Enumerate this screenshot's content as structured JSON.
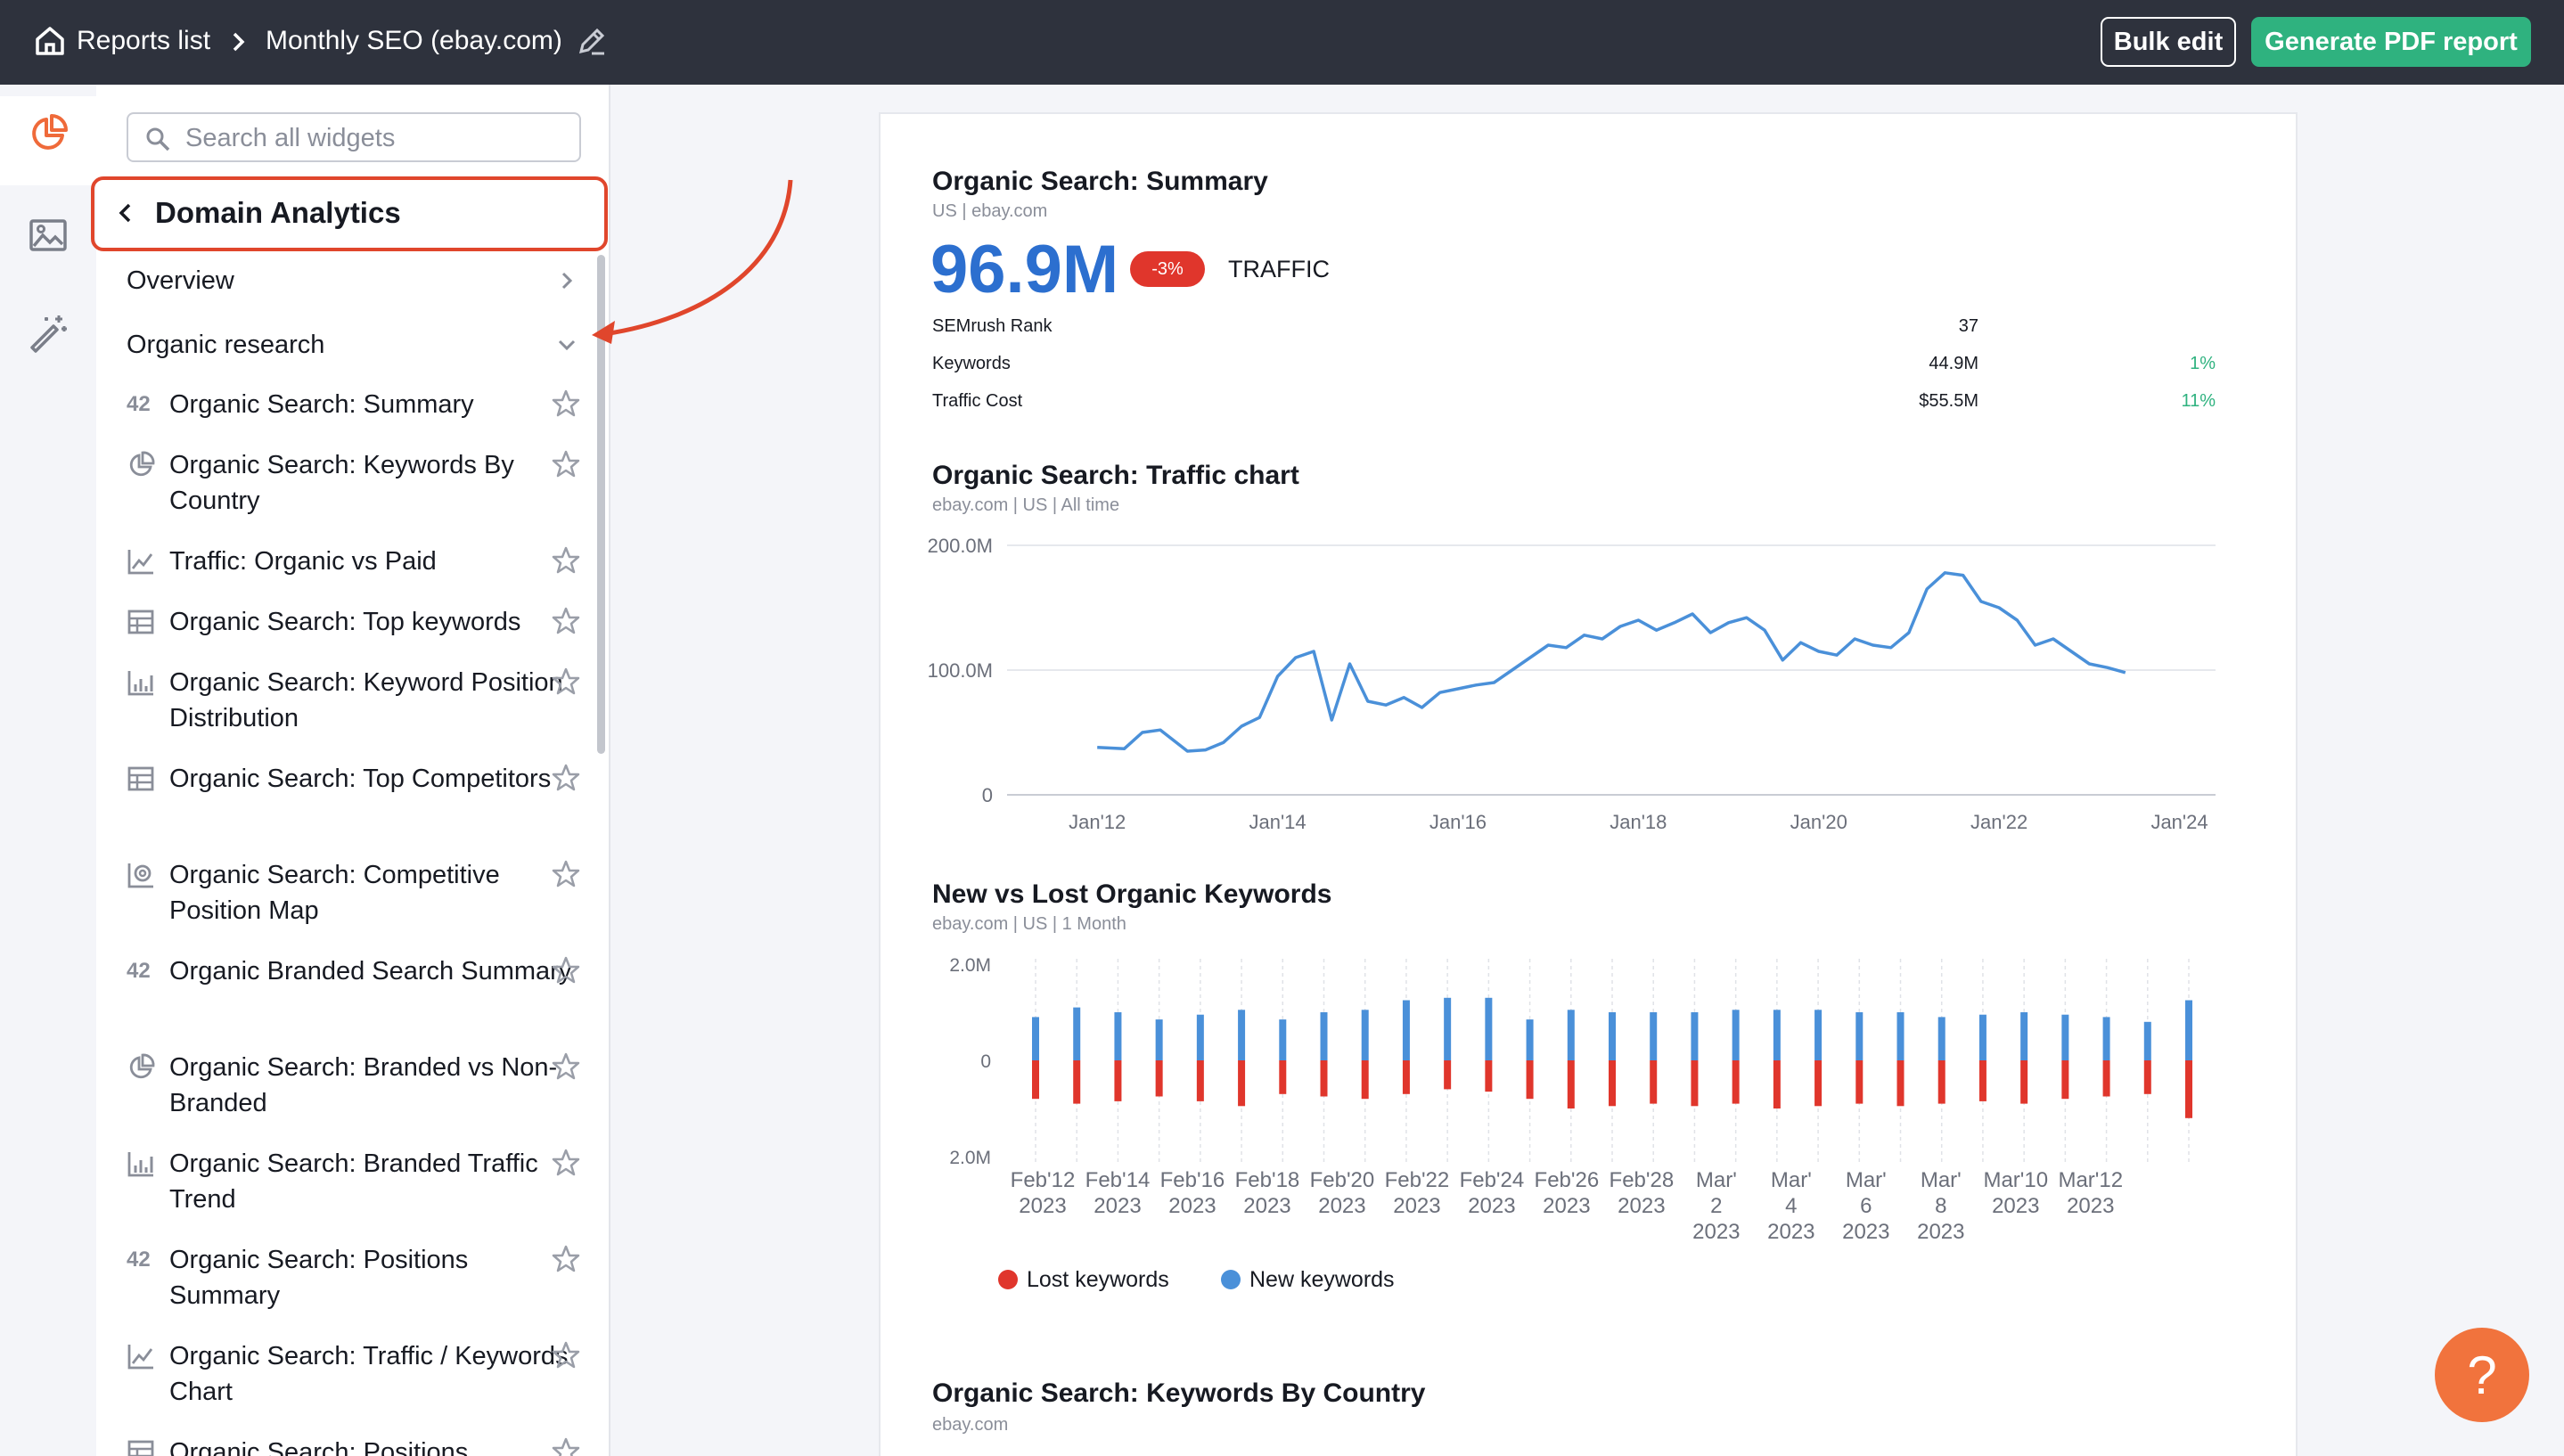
{
  "topbar": {
    "crumb_reports": "Reports list",
    "crumb_report": "Monthly SEO (ebay.com)",
    "bulk_edit": "Bulk edit",
    "generate_pdf": "Generate PDF report"
  },
  "sidebar": {
    "search_placeholder": "Search all widgets",
    "section_title": "Domain Analytics",
    "nav": [
      {
        "label": "Overview"
      },
      {
        "label": "Organic research"
      }
    ],
    "widgets": [
      {
        "label": "Organic Search: Summary",
        "icon": "number-42-icon",
        "glyph": "42"
      },
      {
        "label": "Organic Search: Keywords By Country",
        "icon": "pie-chart-icon"
      },
      {
        "label": "Traffic: Organic vs Paid",
        "icon": "line-chart-icon"
      },
      {
        "label": "Organic Search: Top keywords",
        "icon": "table-icon"
      },
      {
        "label": "Organic Search: Keyword Position Distribution",
        "icon": "bar-chart-icon"
      },
      {
        "label": "Organic Search: Top Competitors",
        "icon": "table-icon"
      },
      {
        "label": "Organic Search: Competitive Position Map",
        "icon": "position-map-icon"
      },
      {
        "label": "Organic Branded Search Summary",
        "icon": "number-42-icon",
        "glyph": "42"
      },
      {
        "label": "Organic Search: Branded vs Non-Branded",
        "icon": "pie-chart-icon"
      },
      {
        "label": "Organic Search: Branded Traffic Trend",
        "icon": "bar-chart-icon"
      },
      {
        "label": "Organic Search: Positions Summary",
        "icon": "number-42-icon",
        "glyph": "42"
      },
      {
        "label": "Organic Search: Traffic / Keywords Chart",
        "icon": "line-chart-icon"
      },
      {
        "label": "Organic Search: Positions",
        "icon": "table-icon"
      }
    ]
  },
  "summary": {
    "title": "Organic Search: Summary",
    "subtitle": "US | ebay.com",
    "traffic_value": "96.9M",
    "traffic_change": "-3%",
    "traffic_label": "TRAFFIC",
    "rows": [
      {
        "label": "SEMrush Rank",
        "value": "37",
        "change": ""
      },
      {
        "label": "Keywords",
        "value": "44.9M",
        "change": "1%"
      },
      {
        "label": "Traffic Cost",
        "value": "$55.5M",
        "change": "11%"
      }
    ]
  },
  "traffic_chart": {
    "title": "Organic Search: Traffic chart",
    "subtitle": "ebay.com | US | All time"
  },
  "new_lost": {
    "title": "New vs Lost Organic Keywords",
    "subtitle": "ebay.com | US | 1 Month",
    "legend_lost": "Lost keywords",
    "legend_new": "New keywords"
  },
  "keywords_country": {
    "title": "Organic Search: Keywords By Country",
    "subtitle": "ebay.com"
  },
  "help": {
    "label": "?"
  },
  "colors": {
    "accent_green": "#2fb27f",
    "line_blue": "#4a90d9",
    "lost_red": "#e0362c",
    "badge_red": "#e0362c"
  },
  "chart_data": [
    {
      "type": "line",
      "ylim": [
        0,
        200
      ],
      "ytick_labels": [
        "200.0M",
        "100.0M",
        "0"
      ],
      "xtick_labels": [
        "Jan'12",
        "Jan'14",
        "Jan'16",
        "Jan'18",
        "Jan'20",
        "Jan'22",
        "Jan'24"
      ],
      "x": [
        2012.0,
        2012.3,
        2012.5,
        2012.7,
        2013.0,
        2013.2,
        2013.4,
        2013.6,
        2013.8,
        2014.0,
        2014.2,
        2014.4,
        2014.6,
        2014.8,
        2015.0,
        2015.2,
        2015.4,
        2015.6,
        2015.8,
        2016.0,
        2016.2,
        2016.4,
        2016.6,
        2016.8,
        2017.0,
        2017.2,
        2017.4,
        2017.6,
        2017.8,
        2018.0,
        2018.2,
        2018.4,
        2018.6,
        2018.8,
        2019.0,
        2019.2,
        2019.4,
        2019.6,
        2019.8,
        2020.0,
        2020.2,
        2020.4,
        2020.6,
        2020.8,
        2021.0,
        2021.2,
        2021.4,
        2021.6,
        2021.8,
        2022.0,
        2022.2,
        2022.4,
        2022.6,
        2022.8,
        2023.0,
        2023.2,
        2023.4
      ],
      "y": [
        38,
        37,
        50,
        52,
        35,
        36,
        42,
        55,
        62,
        95,
        110,
        115,
        60,
        105,
        75,
        72,
        78,
        70,
        82,
        85,
        88,
        90,
        100,
        110,
        120,
        118,
        128,
        125,
        135,
        140,
        132,
        138,
        145,
        130,
        138,
        142,
        132,
        108,
        122,
        115,
        112,
        125,
        120,
        118,
        130,
        165,
        178,
        176,
        155,
        150,
        140,
        120,
        125,
        115,
        105,
        102,
        98
      ]
    },
    {
      "type": "bar",
      "ylim": [
        -2.0,
        2.0
      ],
      "ytick_labels": [
        "2.0M",
        "0",
        "2.0M"
      ],
      "xtick_labels": [
        [
          "Feb'12",
          "2023"
        ],
        [
          "Feb'14",
          "2023"
        ],
        [
          "Feb'16",
          "2023"
        ],
        [
          "Feb'18",
          "2023"
        ],
        [
          "Feb'20",
          "2023"
        ],
        [
          "Feb'22",
          "2023"
        ],
        [
          "Feb'24",
          "2023"
        ],
        [
          "Feb'26",
          "2023"
        ],
        [
          "Feb'28",
          "2023"
        ],
        [
          "Mar'",
          "2",
          "2023"
        ],
        [
          "Mar'",
          "4",
          "2023"
        ],
        [
          "Mar'",
          "6",
          "2023"
        ],
        [
          "Mar'",
          "8",
          "2023"
        ],
        [
          "Mar'10",
          "2023"
        ],
        [
          "Mar'12",
          "2023"
        ]
      ],
      "series": [
        {
          "name": "New keywords",
          "values": [
            0.9,
            1.1,
            1.0,
            0.85,
            0.95,
            1.05,
            0.85,
            1.0,
            1.05,
            1.25,
            1.3,
            1.3,
            0.85,
            1.05,
            1.0,
            1.0,
            1.0,
            1.05,
            1.05,
            1.05,
            1.0,
            1.0,
            0.9,
            0.95,
            1.0,
            0.95,
            0.9,
            0.8,
            1.25
          ]
        },
        {
          "name": "Lost keywords",
          "values": [
            -0.8,
            -0.9,
            -0.85,
            -0.75,
            -0.85,
            -0.95,
            -0.7,
            -0.75,
            -0.8,
            -0.7,
            -0.6,
            -0.65,
            -0.8,
            -1.0,
            -0.95,
            -0.9,
            -0.95,
            -0.9,
            -1.0,
            -0.95,
            -0.9,
            -0.95,
            -0.9,
            -0.85,
            -0.9,
            -0.8,
            -0.75,
            -0.7,
            -1.2
          ]
        }
      ]
    }
  ]
}
